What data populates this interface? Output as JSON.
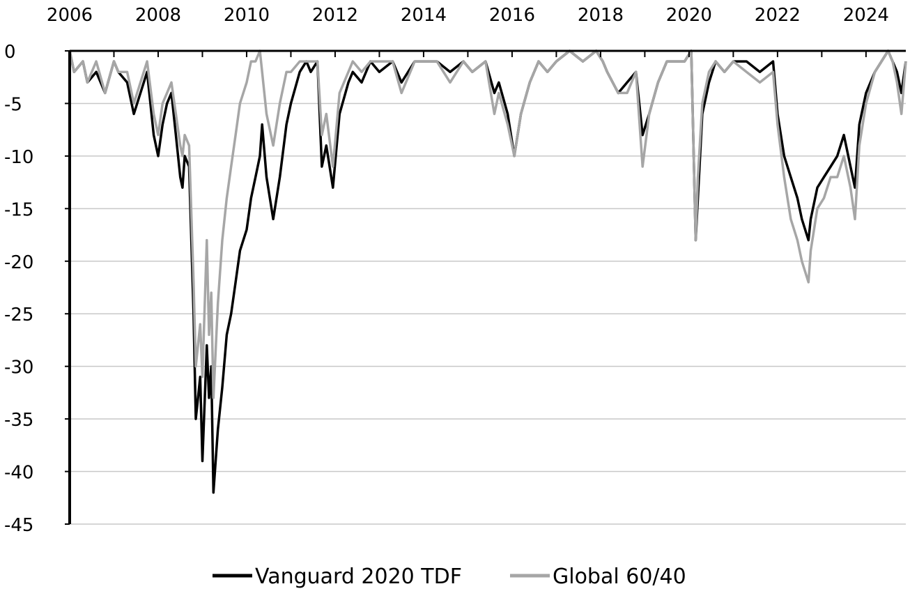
{
  "chart_data": {
    "type": "line",
    "title": "",
    "xlabel": "",
    "ylabel": "",
    "xlim": [
      2006.0,
      2024.9
    ],
    "ylim": [
      -45,
      0
    ],
    "x_ticks": [
      2006,
      2008,
      2010,
      2012,
      2014,
      2016,
      2018,
      2020,
      2022,
      2024
    ],
    "x_tick_labels": [
      "2006",
      "2008",
      "2010",
      "2012",
      "2014",
      "2016",
      "2018",
      "2020",
      "2022",
      "2024"
    ],
    "y_ticks": [
      0,
      -5,
      -10,
      -15,
      -20,
      -25,
      -30,
      -35,
      -40,
      -45
    ],
    "y_tick_labels": [
      "0",
      "-5",
      "-10",
      "-15",
      "-20",
      "-25",
      "-30",
      "-35",
      "-40",
      "-45"
    ],
    "x_axis_position": "top",
    "grid": "horizontal",
    "legend_position": "bottom",
    "series": [
      {
        "name": "Vanguard 2020 TDF",
        "color": "#000000",
        "x": [
          2006.0,
          2006.1,
          2006.3,
          2006.4,
          2006.6,
          2006.8,
          2007.0,
          2007.1,
          2007.3,
          2007.45,
          2007.6,
          2007.75,
          2007.9,
          2008.0,
          2008.1,
          2008.2,
          2008.3,
          2008.4,
          2008.5,
          2008.55,
          2008.6,
          2008.7,
          2008.8,
          2008.85,
          2008.95,
          2009.0,
          2009.1,
          2009.15,
          2009.2,
          2009.25,
          2009.35,
          2009.45,
          2009.55,
          2009.65,
          2009.75,
          2009.85,
          2010.0,
          2010.1,
          2010.2,
          2010.3,
          2010.35,
          2010.45,
          2010.6,
          2010.75,
          2010.9,
          2011.0,
          2011.2,
          2011.35,
          2011.45,
          2011.6,
          2011.7,
          2011.8,
          2011.95,
          2012.1,
          2012.3,
          2012.4,
          2012.6,
          2012.8,
          2013.0,
          2013.3,
          2013.5,
          2013.8,
          2014.0,
          2014.3,
          2014.6,
          2014.9,
          2015.1,
          2015.4,
          2015.6,
          2015.7,
          2015.9,
          2016.05,
          2016.2,
          2016.4,
          2016.6,
          2016.8,
          2017.0,
          2017.3,
          2017.6,
          2017.9,
          2018.05,
          2018.15,
          2018.4,
          2018.6,
          2018.8,
          2018.95,
          2019.1,
          2019.3,
          2019.5,
          2019.7,
          2019.9,
          2020.05,
          2020.15,
          2020.2,
          2020.3,
          2020.45,
          2020.6,
          2020.8,
          2021.0,
          2021.3,
          2021.6,
          2021.9,
          2022.0,
          2022.15,
          2022.3,
          2022.45,
          2022.55,
          2022.7,
          2022.75,
          2022.9,
          2023.05,
          2023.2,
          2023.35,
          2023.5,
          2023.65,
          2023.75,
          2023.85,
          2024.0,
          2024.2,
          2024.35,
          2024.5,
          2024.6,
          2024.7,
          2024.8,
          2024.9
        ],
        "y": [
          0,
          -2,
          -1,
          -3,
          -2,
          -4,
          -1,
          -2,
          -3,
          -6,
          -4,
          -2,
          -8,
          -10,
          -7,
          -5,
          -4,
          -8,
          -12,
          -13,
          -10,
          -11,
          -25,
          -35,
          -31,
          -39,
          -28,
          -33,
          -30,
          -42,
          -36,
          -32,
          -27,
          -25,
          -22,
          -19,
          -17,
          -14,
          -12,
          -10,
          -7,
          -12,
          -16,
          -12,
          -7,
          -5,
          -2,
          -1,
          -2,
          -1,
          -11,
          -9,
          -13,
          -6,
          -3,
          -2,
          -3,
          -1,
          -2,
          -1,
          -3,
          -1,
          -1,
          -1,
          -2,
          -1,
          -2,
          -1,
          -4,
          -3,
          -6,
          -10,
          -6,
          -3,
          -1,
          -2,
          -1,
          0,
          -1,
          0,
          -1,
          -2,
          -4,
          -3,
          -2,
          -8,
          -6,
          -3,
          -1,
          -1,
          -1,
          0,
          -18,
          -14,
          -6,
          -3,
          -1,
          -2,
          -1,
          -1,
          -2,
          -1,
          -6,
          -10,
          -12,
          -14,
          -16,
          -18,
          -16,
          -13,
          -12,
          -11,
          -10,
          -8,
          -11,
          -13,
          -7,
          -4,
          -2,
          -1,
          0,
          -1,
          -2,
          -4,
          -1
        ]
      },
      {
        "name": "Global 60/40",
        "color": "#a6a6a6",
        "x": [
          2006.0,
          2006.1,
          2006.3,
          2006.4,
          2006.6,
          2006.8,
          2007.0,
          2007.1,
          2007.3,
          2007.45,
          2007.6,
          2007.75,
          2007.9,
          2008.0,
          2008.1,
          2008.2,
          2008.3,
          2008.4,
          2008.5,
          2008.55,
          2008.6,
          2008.7,
          2008.8,
          2008.85,
          2008.95,
          2009.0,
          2009.1,
          2009.15,
          2009.2,
          2009.25,
          2009.35,
          2009.45,
          2009.55,
          2009.65,
          2009.75,
          2009.85,
          2010.0,
          2010.1,
          2010.2,
          2010.3,
          2010.35,
          2010.45,
          2010.6,
          2010.75,
          2010.9,
          2011.0,
          2011.2,
          2011.35,
          2011.45,
          2011.6,
          2011.7,
          2011.8,
          2011.95,
          2012.1,
          2012.3,
          2012.4,
          2012.6,
          2012.8,
          2013.0,
          2013.3,
          2013.5,
          2013.8,
          2014.0,
          2014.3,
          2014.6,
          2014.9,
          2015.1,
          2015.4,
          2015.6,
          2015.7,
          2015.9,
          2016.05,
          2016.2,
          2016.4,
          2016.6,
          2016.8,
          2017.0,
          2017.3,
          2017.6,
          2017.9,
          2018.05,
          2018.15,
          2018.4,
          2018.6,
          2018.8,
          2018.95,
          2019.1,
          2019.3,
          2019.5,
          2019.7,
          2019.9,
          2020.05,
          2020.15,
          2020.2,
          2020.3,
          2020.45,
          2020.6,
          2020.8,
          2021.0,
          2021.3,
          2021.6,
          2021.9,
          2022.0,
          2022.15,
          2022.3,
          2022.45,
          2022.55,
          2022.7,
          2022.75,
          2022.9,
          2023.05,
          2023.2,
          2023.35,
          2023.5,
          2023.65,
          2023.75,
          2023.85,
          2024.0,
          2024.2,
          2024.35,
          2024.5,
          2024.6,
          2024.7,
          2024.8,
          2024.9
        ],
        "y": [
          0,
          -2,
          -1,
          -3,
          -1,
          -4,
          -1,
          -2,
          -2,
          -5,
          -3,
          -1,
          -6,
          -8,
          -5,
          -4,
          -3,
          -6,
          -9,
          -10,
          -8,
          -9,
          -22,
          -30,
          -26,
          -31,
          -18,
          -27,
          -23,
          -33,
          -24,
          -18,
          -14,
          -11,
          -8,
          -5,
          -3,
          -1,
          -1,
          0,
          -2,
          -6,
          -9,
          -5,
          -2,
          -2,
          -1,
          -1,
          -1,
          -1,
          -8,
          -6,
          -11,
          -4,
          -2,
          -1,
          -2,
          -1,
          -1,
          -1,
          -4,
          -1,
          -1,
          -1,
          -3,
          -1,
          -2,
          -1,
          -6,
          -4,
          -7,
          -10,
          -6,
          -3,
          -1,
          -2,
          -1,
          0,
          -1,
          0,
          -1,
          -2,
          -4,
          -4,
          -2,
          -11,
          -6,
          -3,
          -1,
          -1,
          -1,
          0,
          -18,
          -12,
          -5,
          -2,
          -1,
          -2,
          -1,
          -2,
          -3,
          -2,
          -7,
          -12,
          -16,
          -18,
          -20,
          -22,
          -19,
          -15,
          -14,
          -12,
          -12,
          -10,
          -13,
          -16,
          -9,
          -5,
          -2,
          -1,
          0,
          -1,
          -3,
          -6,
          -1
        ]
      }
    ]
  }
}
